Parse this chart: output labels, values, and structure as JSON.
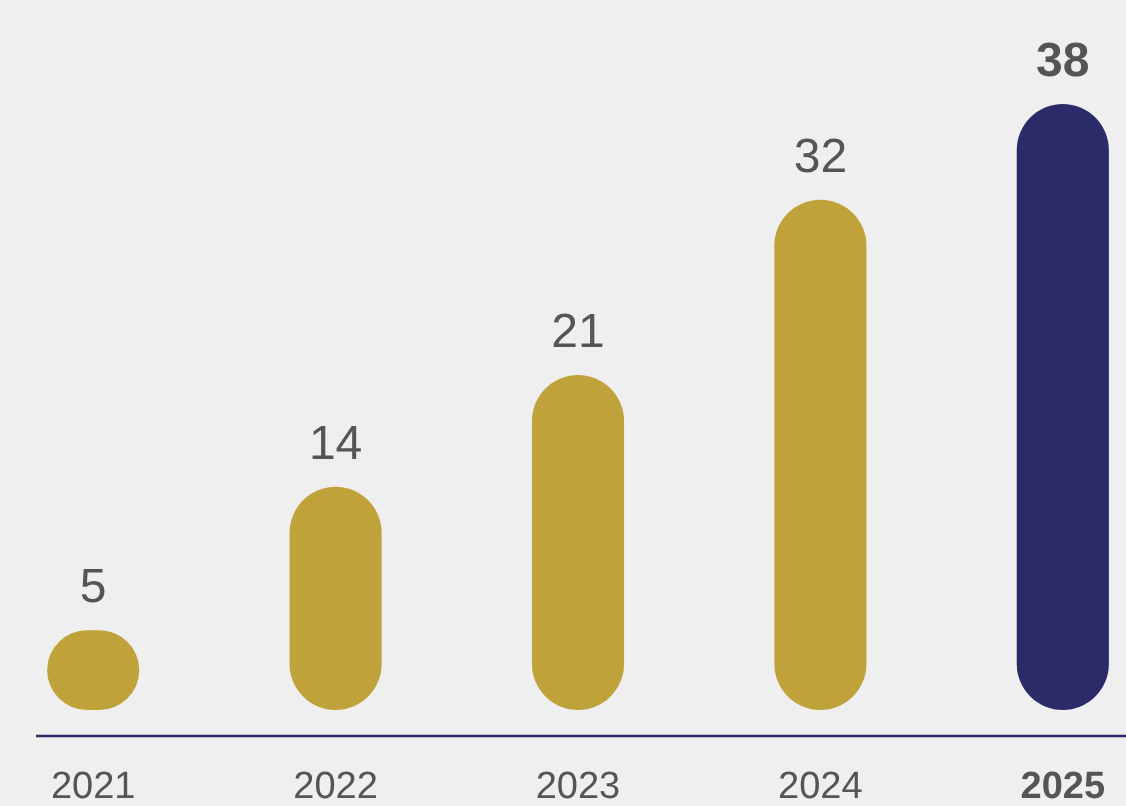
{
  "chart_data": {
    "type": "bar",
    "categories": [
      "2021",
      "2022",
      "2023",
      "2024",
      "2025"
    ],
    "values": [
      5,
      14,
      21,
      32,
      38
    ],
    "colors": [
      "#c0a23a",
      "#c0a23a",
      "#c0a23a",
      "#c0a23a",
      "#2c2b69"
    ],
    "data_labels": true
  }
}
